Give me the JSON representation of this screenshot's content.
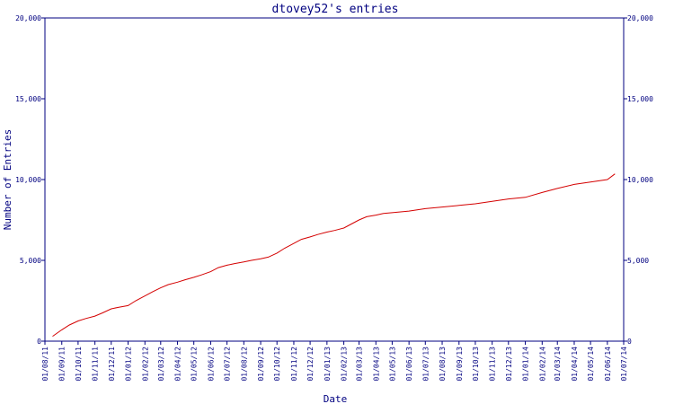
{
  "chart_data": {
    "type": "line",
    "title": "dtovey52's entries",
    "xlabel": "Date",
    "ylabel": "Number of Entries",
    "ylim": [
      0,
      20000
    ],
    "y_ticks": [
      0,
      5000,
      10000,
      15000,
      20000
    ],
    "y_tick_labels": [
      "0",
      "5,000",
      "10,000",
      "15,000",
      "20,000"
    ],
    "x_tick_labels": [
      "01/08/11",
      "01/09/11",
      "01/10/11",
      "01/11/11",
      "01/12/11",
      "01/01/12",
      "01/02/12",
      "01/03/12",
      "01/04/12",
      "01/05/12",
      "01/06/12",
      "01/07/12",
      "01/08/12",
      "01/09/12",
      "01/10/12",
      "01/11/12",
      "01/12/12",
      "01/01/13",
      "01/02/13",
      "01/03/13",
      "01/04/13",
      "01/05/13",
      "01/06/13",
      "01/07/13",
      "01/08/13",
      "01/09/13",
      "01/10/13",
      "01/11/13",
      "01/12/13",
      "01/01/14",
      "01/02/14",
      "01/03/14",
      "01/04/14",
      "01/05/14",
      "01/06/14",
      "01/07/14"
    ],
    "grid": false,
    "series": [
      {
        "x": [
          "2011-08-15",
          "2011-09-01",
          "2011-09-15",
          "2011-10-01",
          "2011-10-15",
          "2011-11-01",
          "2011-11-15",
          "2011-12-01",
          "2011-12-15",
          "2012-01-01",
          "2012-01-15",
          "2012-02-01",
          "2012-02-15",
          "2012-03-01",
          "2012-03-15",
          "2012-04-01",
          "2012-04-15",
          "2012-05-01",
          "2012-05-15",
          "2012-06-01",
          "2012-06-15",
          "2012-07-01",
          "2012-07-15",
          "2012-08-01",
          "2012-08-15",
          "2012-09-01",
          "2012-09-15",
          "2012-10-01",
          "2012-10-15",
          "2012-11-01",
          "2012-11-15",
          "2012-12-01",
          "2012-12-15",
          "2013-01-01",
          "2013-01-15",
          "2013-02-01",
          "2013-02-15",
          "2013-03-01",
          "2013-03-15",
          "2013-04-01",
          "2013-04-15",
          "2013-05-01",
          "2013-06-01",
          "2013-07-01",
          "2013-08-01",
          "2013-09-01",
          "2013-10-01",
          "2013-11-01",
          "2013-12-01",
          "2014-01-01",
          "2014-02-01",
          "2014-03-01",
          "2014-04-01",
          "2014-05-01",
          "2014-06-01",
          "2014-06-15"
        ],
        "values": [
          300,
          700,
          1000,
          1250,
          1400,
          1550,
          1750,
          2000,
          2100,
          2200,
          2500,
          2800,
          3050,
          3300,
          3500,
          3650,
          3800,
          3950,
          4100,
          4300,
          4550,
          4700,
          4800,
          4900,
          5000,
          5100,
          5200,
          5450,
          5750,
          6050,
          6300,
          6450,
          6600,
          6750,
          6850,
          7000,
          7250,
          7500,
          7700,
          7800,
          7900,
          7950,
          8050,
          8200,
          8300,
          8400,
          8500,
          8650,
          8800,
          8900,
          9200,
          9450,
          9700,
          9850,
          10000,
          10350
        ]
      }
    ],
    "colors": {
      "axis": "#000080",
      "text": "#000080",
      "line": "#d40000"
    }
  }
}
